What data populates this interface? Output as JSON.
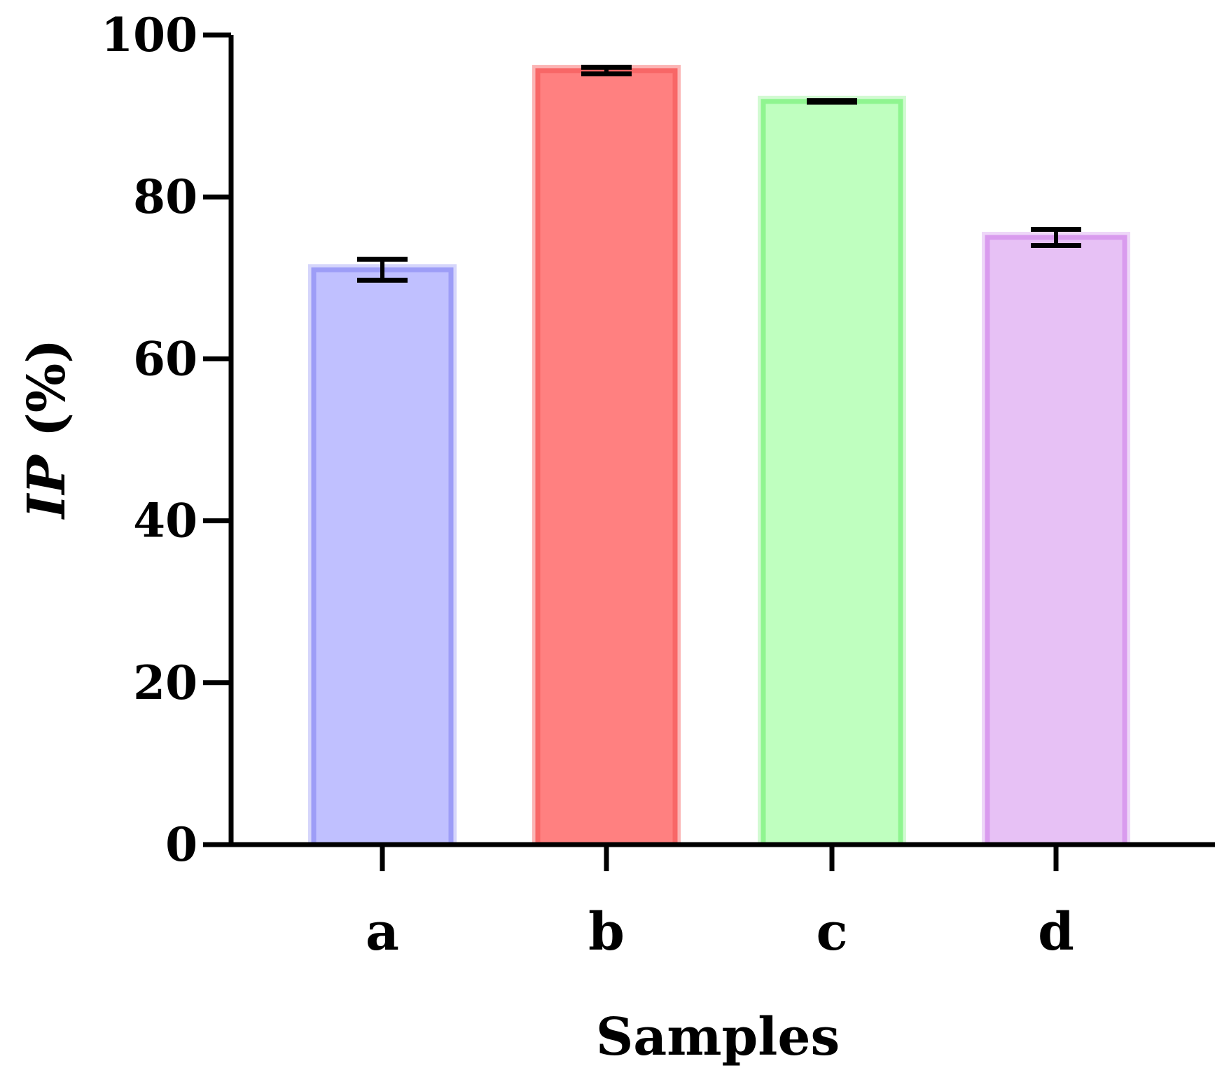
{
  "chart_data": {
    "type": "bar",
    "categories": [
      "a",
      "b",
      "c",
      "d"
    ],
    "values": [
      71,
      95.6,
      91.8,
      75
    ],
    "errors": [
      1.3,
      0.4,
      0.1,
      1.0
    ],
    "xlabel": "Samples",
    "ylabel_italic": "IP",
    "ylabel_rest": " (%)",
    "ylim": [
      0,
      100
    ],
    "yticks": [
      "0",
      "20",
      "40",
      "60",
      "80",
      "100"
    ],
    "colors": {
      "fill": [
        "#c0c0ff",
        "#ff8080",
        "#bfffbf",
        "#e7c1f5"
      ],
      "stroke": [
        "#9d9df7",
        "#f86767",
        "#8ff590",
        "#d99bee"
      ],
      "halo": [
        "#d5d5fb",
        "#fbb4b4",
        "#d2fad2",
        "#eed7f8"
      ]
    },
    "grid": false,
    "legend": "none"
  }
}
